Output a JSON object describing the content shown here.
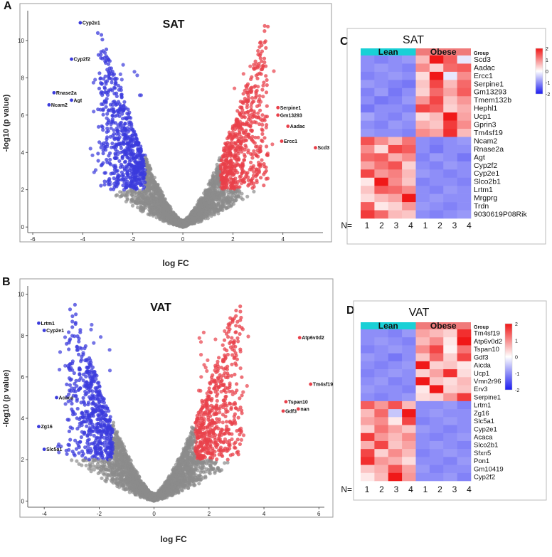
{
  "colors": {
    "up": "#e8404a",
    "down": "#3b3bdc",
    "nonsig": "#8c8c8c",
    "lean_bar": "#19d0d6",
    "obese_bar": "#f07a7a",
    "heat_low": "#1c1cf0",
    "heat_mid": "#ffffff",
    "heat_high": "#f01818",
    "axis": "#333333"
  },
  "panel_labels": {
    "A": "A",
    "B": "B",
    "C": "C",
    "D": "D"
  },
  "chart_data": [
    {
      "id": "A",
      "type": "scatter",
      "subtype": "volcano",
      "title": "SAT",
      "xlabel": "log FC",
      "ylabel": "-log10 (p value)",
      "xlim": [
        -6.2,
        5.6
      ],
      "ylim": [
        -0.3,
        11.6
      ],
      "xticks": [
        -6,
        -4,
        -2,
        0,
        2,
        4
      ],
      "yticks": [
        0,
        2,
        4,
        6,
        8,
        10
      ],
      "fc_threshold": 1.5,
      "sig_level": 2,
      "labeled_genes": [
        {
          "gene": "Cyp2e1",
          "x": -4.1,
          "y": 10.95,
          "dir": "down"
        },
        {
          "gene": "Cyp2f2",
          "x": -4.45,
          "y": 9.0,
          "dir": "down"
        },
        {
          "gene": "Rnase2a",
          "x": -5.15,
          "y": 7.2,
          "dir": "down"
        },
        {
          "gene": "Agt",
          "x": -4.45,
          "y": 6.8,
          "dir": "down"
        },
        {
          "gene": "Ncam2",
          "x": -5.35,
          "y": 6.55,
          "dir": "down"
        },
        {
          "gene": "Serpine1",
          "x": 3.8,
          "y": 6.4,
          "dir": "up"
        },
        {
          "gene": "Gm13293",
          "x": 3.8,
          "y": 6.0,
          "dir": "up"
        },
        {
          "gene": "Aadac",
          "x": 4.2,
          "y": 5.4,
          "dir": "up"
        },
        {
          "gene": "Ercc1",
          "x": 3.95,
          "y": 4.6,
          "dir": "up"
        },
        {
          "gene": "Scd3",
          "x": 5.3,
          "y": 4.25,
          "dir": "up"
        }
      ]
    },
    {
      "id": "B",
      "type": "scatter",
      "subtype": "volcano",
      "title": "VAT",
      "xlabel": "log FC",
      "ylabel": "-log10 (p value)",
      "xlim": [
        -4.6,
        6.2
      ],
      "ylim": [
        -0.3,
        10.4
      ],
      "xticks": [
        -4,
        -2,
        0,
        2,
        4,
        6
      ],
      "yticks": [
        0,
        2,
        4,
        6,
        8,
        10
      ],
      "fc_threshold": 1.5,
      "sig_level": 2,
      "labeled_genes": [
        {
          "gene": "Lrtm1",
          "x": -4.2,
          "y": 8.6,
          "dir": "down"
        },
        {
          "gene": "Cyp2e1",
          "x": -4.0,
          "y": 8.25,
          "dir": "down"
        },
        {
          "gene": "Acaca",
          "x": -3.55,
          "y": 5.0,
          "dir": "down"
        },
        {
          "gene": "Zg16",
          "x": -4.2,
          "y": 3.6,
          "dir": "down"
        },
        {
          "gene": "Slc5a1",
          "x": -4.0,
          "y": 2.5,
          "dir": "down"
        },
        {
          "gene": "Atp6v0d2",
          "x": 5.3,
          "y": 7.9,
          "dir": "up"
        },
        {
          "gene": "Tm4sf19",
          "x": 5.7,
          "y": 5.65,
          "dir": "up"
        },
        {
          "gene": "Tspan10",
          "x": 4.8,
          "y": 4.8,
          "dir": "up"
        },
        {
          "gene": "Gdf3",
          "x": 4.7,
          "y": 4.35,
          "dir": "up"
        },
        {
          "gene": "nan",
          "x": 5.25,
          "y": 4.45,
          "dir": "up"
        }
      ]
    },
    {
      "id": "C",
      "type": "heatmap",
      "title": "SAT",
      "group_label": "Group",
      "groups": [
        {
          "name": "Lean",
          "n": 4
        },
        {
          "name": "Obese",
          "n": 4
        }
      ],
      "n_prefix": "N=",
      "sample_labels": [
        "1",
        "2",
        "3",
        "4",
        "1",
        "2",
        "3",
        "4"
      ],
      "colorbar_ticks": [
        2,
        1,
        0,
        -1,
        -2
      ],
      "genes": [
        "Scd3",
        "Aadac",
        "Ercc1",
        "Serpine1",
        "Gm13293",
        "Tmem132b",
        "Hephl1",
        "Ucp1",
        "Gprin3",
        "Tm4sf19",
        "Ncam2",
        "Rnase2a",
        "Agt",
        "Cyp2f2",
        "Cyp2e1",
        "Slco2b1",
        "Lrtm1",
        "Mrgprg",
        "Trdn",
        "9030619P08Rik"
      ],
      "values": [
        [
          -1.0,
          -1.1,
          -1.0,
          -0.9,
          0.6,
          2.0,
          1.4,
          -0.2
        ],
        [
          -1.0,
          -0.9,
          -1.0,
          -1.1,
          1.0,
          0.4,
          1.3,
          1.4
        ],
        [
          -1.1,
          -1.0,
          -0.9,
          -1.0,
          0.3,
          2.0,
          -0.2,
          1.0
        ],
        [
          -0.9,
          -1.0,
          -1.1,
          -1.2,
          0.5,
          1.6,
          0.6,
          1.3
        ],
        [
          -1.1,
          -0.9,
          -1.2,
          -1.0,
          0.4,
          1.3,
          0.8,
          1.4
        ],
        [
          -1.0,
          -1.2,
          -1.1,
          -0.9,
          0.9,
          1.6,
          0.5,
          0.9
        ],
        [
          -1.2,
          -1.0,
          -1.0,
          -1.1,
          1.6,
          1.4,
          0.4,
          0.7
        ],
        [
          -0.8,
          -1.0,
          -1.1,
          -0.9,
          0.3,
          0.6,
          2.0,
          0.8
        ],
        [
          -1.0,
          -1.1,
          -0.9,
          -1.0,
          0.7,
          0.5,
          1.7,
          1.0
        ],
        [
          -0.9,
          -1.0,
          -1.0,
          -1.1,
          1.0,
          0.8,
          1.8,
          0.6
        ],
        [
          1.5,
          1.0,
          0.6,
          1.2,
          -1.0,
          -1.1,
          -1.0,
          -0.9
        ],
        [
          1.0,
          0.3,
          1.6,
          1.4,
          -1.0,
          -1.2,
          -1.0,
          -1.0
        ],
        [
          1.3,
          1.4,
          0.7,
          1.0,
          -1.1,
          -0.9,
          -1.0,
          -1.2
        ],
        [
          0.8,
          1.2,
          1.5,
          0.4,
          -1.0,
          -1.1,
          -0.9,
          -1.0
        ],
        [
          1.6,
          0.9,
          1.1,
          0.6,
          -0.9,
          -1.0,
          -1.1,
          -1.0
        ],
        [
          0.2,
          2.0,
          1.0,
          0.5,
          -1.1,
          -1.0,
          -1.0,
          -1.1
        ],
        [
          0.5,
          1.4,
          1.3,
          1.0,
          -1.0,
          -1.1,
          -0.9,
          -1.0
        ],
        [
          0.3,
          0.6,
          0.8,
          2.0,
          -1.0,
          -0.9,
          -1.0,
          -1.0
        ],
        [
          1.4,
          0.2,
          0.4,
          0.9,
          -0.9,
          -1.0,
          -1.1,
          -1.0
        ],
        [
          1.7,
          1.3,
          0.6,
          0.5,
          -1.0,
          -1.1,
          -1.0,
          -0.9
        ]
      ]
    },
    {
      "id": "D",
      "type": "heatmap",
      "title": "VAT",
      "group_label": "Group",
      "groups": [
        {
          "name": "Lean",
          "n": 4
        },
        {
          "name": "Obese",
          "n": 4
        }
      ],
      "n_prefix": "N=",
      "sample_labels": [
        "1",
        "2",
        "3",
        "4",
        "1",
        "2",
        "3",
        "4"
      ],
      "colorbar_ticks": [
        2,
        1,
        0,
        -1,
        -2
      ],
      "genes": [
        "Tm4sf19",
        "Atp6v0d2",
        "Tspan10",
        "Gdf3",
        "Aicda",
        "Ucp1",
        "Vmn2r96",
        "Erv3",
        "Serpine1",
        "Lrtm1",
        "Zg16",
        "Slc5a1",
        "Cyp2e1",
        "Acaca",
        "Slco2b1",
        "Sfxn5",
        "Pon1",
        "Gm10419",
        "Cyp2f2"
      ],
      "values": [
        [
          -1.0,
          -1.0,
          -1.1,
          -0.9,
          0.8,
          0.6,
          0.4,
          1.8
        ],
        [
          -1.0,
          -0.9,
          -1.0,
          -1.1,
          0.6,
          1.0,
          0.2,
          2.0
        ],
        [
          -1.1,
          -1.0,
          -0.9,
          -1.0,
          1.0,
          1.6,
          0.1,
          1.2
        ],
        [
          -0.9,
          -1.0,
          -1.2,
          -1.0,
          0.5,
          1.3,
          0.4,
          1.6
        ],
        [
          -1.0,
          -1.1,
          -1.0,
          -0.9,
          2.0,
          0.4,
          0.5,
          0.2
        ],
        [
          -1.1,
          -1.0,
          -0.9,
          -1.0,
          0.4,
          0.8,
          1.8,
          0.3
        ],
        [
          -1.0,
          -0.9,
          -1.1,
          -1.0,
          2.0,
          0.5,
          0.3,
          0.6
        ],
        [
          -0.9,
          -1.0,
          -1.0,
          -1.1,
          0.2,
          2.0,
          0.4,
          0.5
        ],
        [
          -1.0,
          -1.1,
          -1.0,
          -0.9,
          0.3,
          0.4,
          0.9,
          1.7
        ],
        [
          1.4,
          0.9,
          1.5,
          0.6,
          -1.0,
          -1.0,
          -0.9,
          -1.1
        ],
        [
          0.6,
          1.3,
          -0.5,
          2.0,
          -1.0,
          -0.9,
          -1.0,
          -1.0
        ],
        [
          0.8,
          1.0,
          0.2,
          1.6,
          -1.1,
          -1.0,
          -0.9,
          -1.0
        ],
        [
          0.4,
          1.2,
          0.8,
          0.5,
          -0.9,
          -1.0,
          -1.1,
          -1.0
        ],
        [
          1.7,
          0.9,
          0.6,
          1.0,
          -1.0,
          -1.1,
          -1.0,
          -0.9
        ],
        [
          0.7,
          1.6,
          0.5,
          0.8,
          -1.0,
          -0.9,
          -1.0,
          -1.1
        ],
        [
          1.6,
          0.4,
          1.0,
          0.6,
          -1.1,
          -1.0,
          -0.9,
          -1.0
        ],
        [
          1.8,
          0.9,
          0.7,
          0.3,
          -1.0,
          -1.0,
          -1.1,
          -0.9
        ],
        [
          0.5,
          0.7,
          1.5,
          0.8,
          -0.9,
          -1.1,
          -1.0,
          -1.0
        ],
        [
          0.2,
          0.6,
          2.0,
          0.9,
          -1.0,
          -1.0,
          -0.9,
          -1.1
        ]
      ]
    }
  ]
}
